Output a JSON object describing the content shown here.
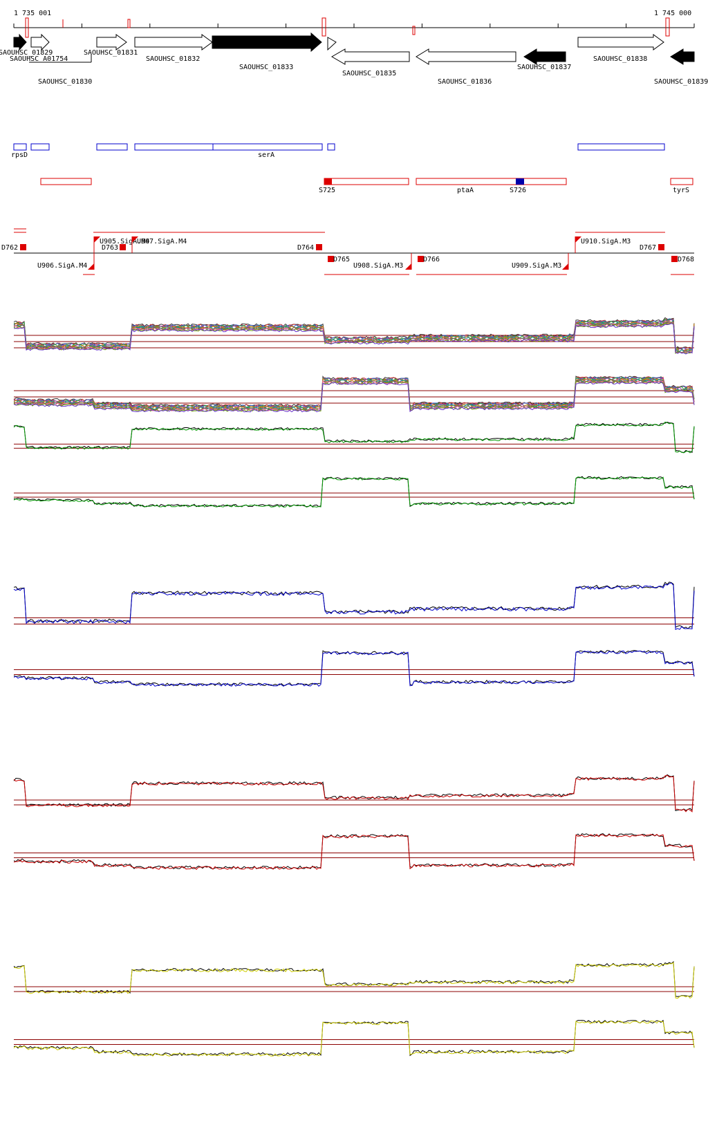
{
  "coords": {
    "start_label": "1 735 001",
    "end_label": "1 745 000"
  },
  "genes": [
    {
      "id": "g1829",
      "label": "SAOUHSC_01829",
      "strand": "+",
      "filled": true
    },
    {
      "id": "g1754",
      "label": "SAOUHSC_A01754",
      "strand": "+",
      "filled": false
    },
    {
      "id": "g1830",
      "label": "SAOUHSC_01830",
      "strand": "-",
      "filled": false
    },
    {
      "id": "g1831",
      "label": "SAOUHSC_01831",
      "strand": "+",
      "filled": false
    },
    {
      "id": "g1832",
      "label": "SAOUHSC_01832",
      "strand": "+",
      "filled": false
    },
    {
      "id": "g1833",
      "label": "SAOUHSC_01833",
      "strand": "+",
      "filled": true
    },
    {
      "id": "g1834",
      "label": "",
      "strand": "+",
      "filled": false
    },
    {
      "id": "g1835",
      "label": "SAOUHSC_01835",
      "strand": "-",
      "filled": false
    },
    {
      "id": "g1836",
      "label": "SAOUHSC_01836",
      "strand": "-",
      "filled": false
    },
    {
      "id": "g1837",
      "label": "SAOUHSC_01837",
      "strand": "-",
      "filled": true
    },
    {
      "id": "g1838",
      "label": "SAOUHSC_01838",
      "strand": "+",
      "filled": false
    },
    {
      "id": "g1839",
      "label": "SAOUHSC_01839",
      "strand": "-",
      "filled": true
    }
  ],
  "annotations_plus": [
    {
      "id": "a-rpsD",
      "label": "rpsD"
    },
    {
      "id": "a-b2",
      "label": ""
    },
    {
      "id": "a-b3",
      "label": ""
    },
    {
      "id": "a-b4",
      "label": ""
    },
    {
      "id": "a-serA",
      "label": "serA"
    },
    {
      "id": "a-b6",
      "label": ""
    },
    {
      "id": "a-b7",
      "label": ""
    }
  ],
  "annotations_minus": [
    {
      "id": "m-1",
      "label": ""
    },
    {
      "id": "m-S725",
      "label": "S725"
    },
    {
      "id": "m-ptaA",
      "label": "ptaA"
    },
    {
      "id": "m-S726",
      "label": "S726"
    },
    {
      "id": "m-tyrS",
      "label": "tyrS"
    }
  ],
  "segments": [
    {
      "id": "D762",
      "label": "D762"
    },
    {
      "id": "U905",
      "label": "U905.SigA.M4"
    },
    {
      "id": "U907",
      "label": "U907.SigA.M4"
    },
    {
      "id": "D763",
      "label": "D763"
    },
    {
      "id": "D764",
      "label": "D764"
    },
    {
      "id": "U906",
      "label": "U906.SigA.M4"
    },
    {
      "id": "D765",
      "label": "D765"
    },
    {
      "id": "U908",
      "label": "U908.SigA.M3"
    },
    {
      "id": "D766",
      "label": "D766"
    },
    {
      "id": "U909",
      "label": "U909.SigA.M3"
    },
    {
      "id": "U910",
      "label": "U910.SigA.M3"
    },
    {
      "id": "D767",
      "label": "D767"
    },
    {
      "id": "D768",
      "label": "D768"
    }
  ],
  "colors": {
    "gene_border": "#000000",
    "annotation_plus": "#0000cc",
    "annotation_minus": "#dd0000",
    "sigma_site": "#0000aa",
    "guide_line": "#8b0000",
    "track_green": "#009900",
    "track_blue": "#0000cc",
    "track_red": "#cc0000",
    "track_yellow": "#cccc00"
  },
  "expression": {
    "plus_profile_levels": [
      0.82,
      0.3,
      0.3,
      0.3,
      0.75,
      0.75,
      0.45,
      0.5,
      0.5,
      0.52,
      0.85,
      0.9,
      0.2
    ],
    "minus_profile_levels": [
      0.3,
      0.28,
      0.2,
      0.2,
      0.15,
      0.82,
      0.8,
      0.15,
      0.2,
      0.22,
      0.82,
      0.6,
      0.6
    ]
  }
}
